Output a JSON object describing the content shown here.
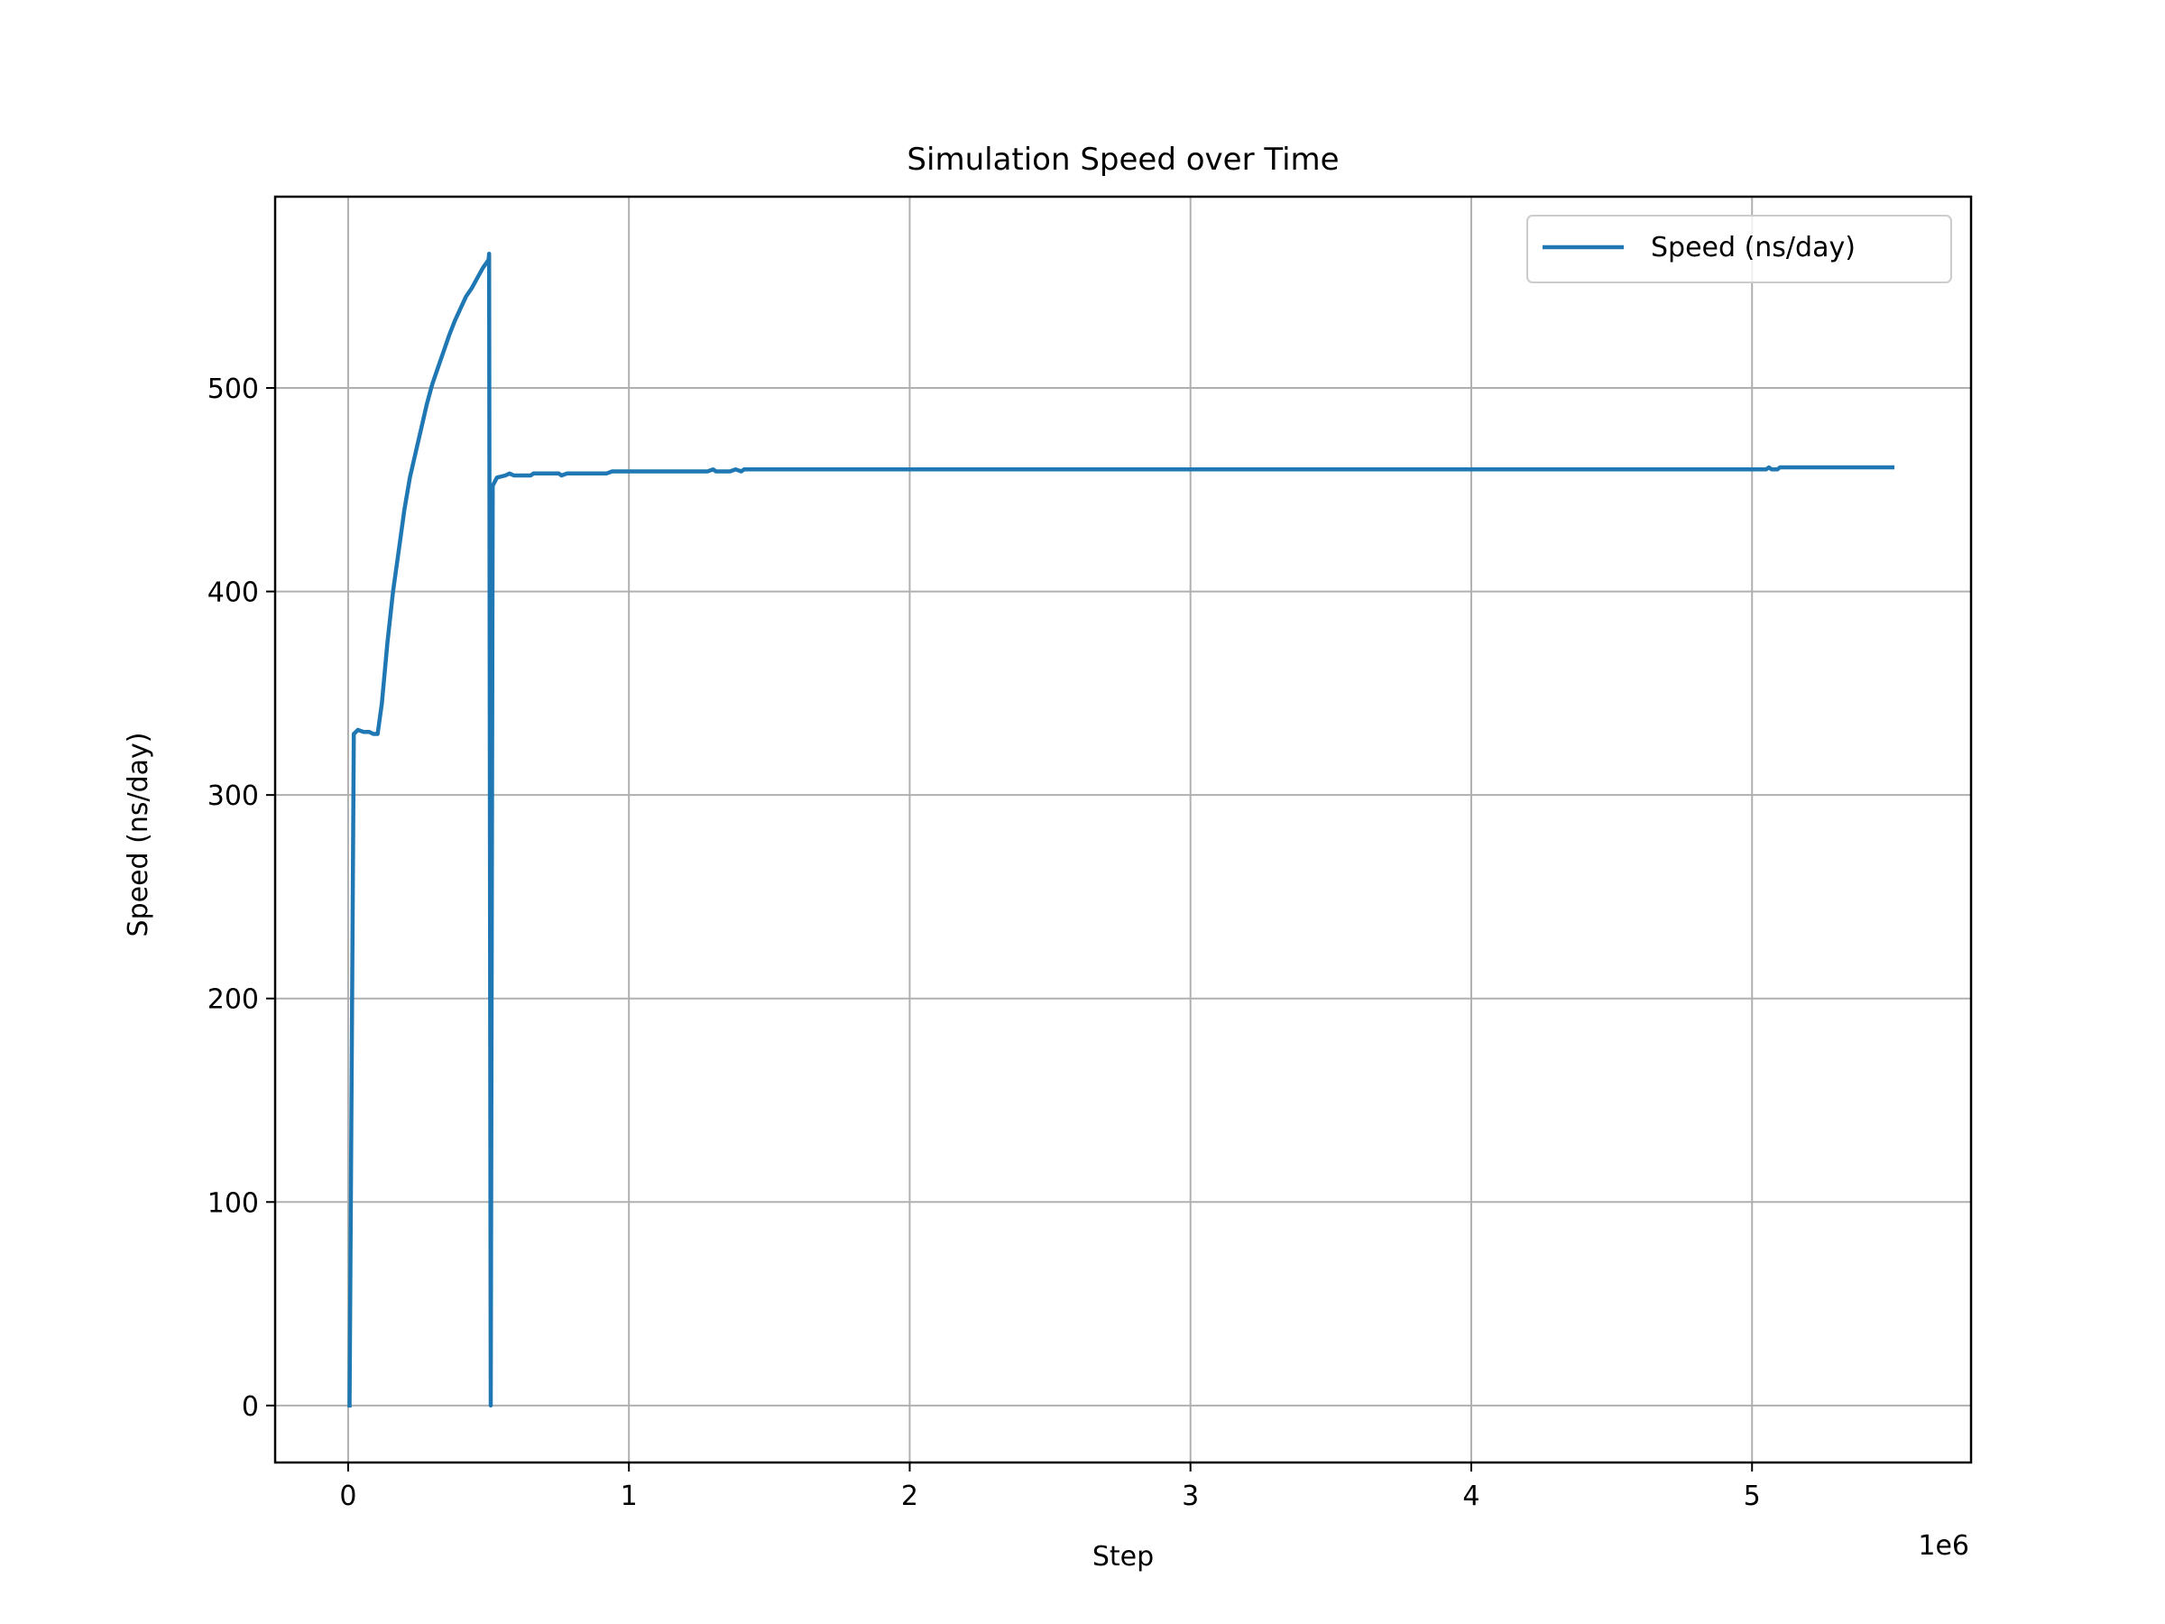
{
  "chart_data": {
    "type": "line",
    "title": "Simulation Speed over Time",
    "xlabel": "Step",
    "ylabel": "Speed (ns/day)",
    "x_offset_label": "1e6",
    "xlim": [
      -260000,
      5780000
    ],
    "ylim": [
      -28,
      594
    ],
    "x_ticks": [
      0,
      1000000,
      2000000,
      3000000,
      4000000,
      5000000
    ],
    "x_tick_labels": [
      "0",
      "1",
      "2",
      "3",
      "4",
      "5"
    ],
    "y_ticks": [
      0,
      100,
      200,
      300,
      400,
      500
    ],
    "y_tick_labels": [
      "0",
      "100",
      "200",
      "300",
      "400",
      "500"
    ],
    "grid": true,
    "legend": {
      "position": "upper right"
    },
    "series": [
      {
        "name": "Speed (ns/day)",
        "color": "#1f77b4",
        "points": [
          [
            5000,
            0
          ],
          [
            20000,
            330
          ],
          [
            35000,
            332
          ],
          [
            55000,
            331
          ],
          [
            75000,
            331
          ],
          [
            90000,
            330
          ],
          [
            105000,
            330
          ],
          [
            120000,
            345
          ],
          [
            140000,
            375
          ],
          [
            160000,
            400
          ],
          [
            180000,
            420
          ],
          [
            200000,
            440
          ],
          [
            220000,
            456
          ],
          [
            240000,
            468
          ],
          [
            260000,
            480
          ],
          [
            280000,
            492
          ],
          [
            300000,
            502
          ],
          [
            320000,
            510
          ],
          [
            340000,
            518
          ],
          [
            360000,
            526
          ],
          [
            380000,
            533
          ],
          [
            400000,
            539
          ],
          [
            420000,
            545
          ],
          [
            440000,
            549
          ],
          [
            460000,
            554
          ],
          [
            480000,
            559
          ],
          [
            500000,
            563
          ],
          [
            502000,
            566
          ],
          [
            508000,
            0
          ],
          [
            515000,
            452
          ],
          [
            530000,
            456
          ],
          [
            560000,
            457
          ],
          [
            575000,
            458
          ],
          [
            590000,
            457
          ],
          [
            650000,
            457
          ],
          [
            660000,
            458
          ],
          [
            750000,
            458
          ],
          [
            760000,
            457
          ],
          [
            780000,
            458
          ],
          [
            920000,
            458
          ],
          [
            940000,
            459
          ],
          [
            1280000,
            459
          ],
          [
            1300000,
            460
          ],
          [
            1310000,
            459
          ],
          [
            1360000,
            459
          ],
          [
            1380000,
            460
          ],
          [
            1400000,
            459
          ],
          [
            1410000,
            460
          ],
          [
            5050000,
            460
          ],
          [
            5060000,
            461
          ],
          [
            5070000,
            460
          ],
          [
            5090000,
            460
          ],
          [
            5100000,
            461
          ],
          [
            5500000,
            461
          ]
        ]
      }
    ]
  }
}
